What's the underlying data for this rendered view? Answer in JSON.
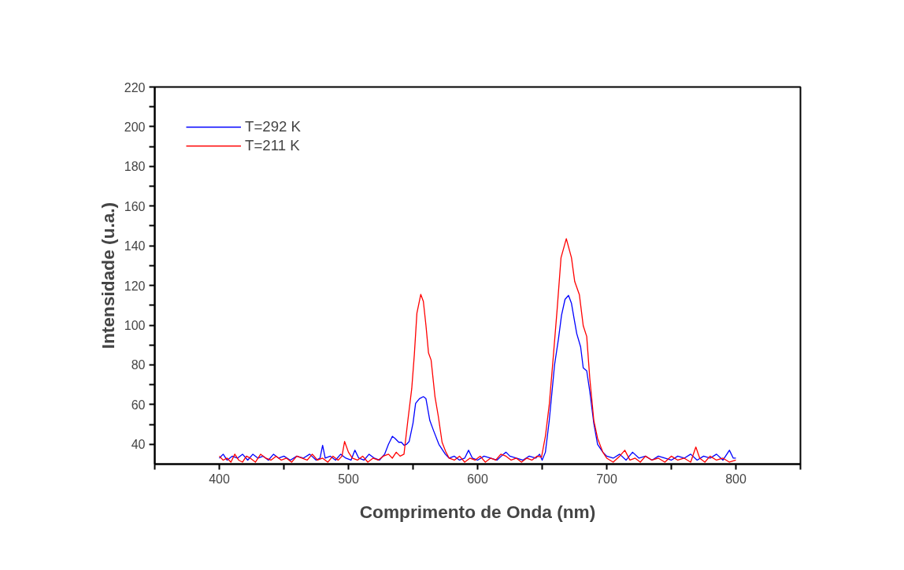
{
  "chart_data": {
    "type": "line",
    "xlabel": "Comprimento de Onda (nm)",
    "ylabel": "Intensidade (u.a.)",
    "xlim": [
      350,
      850
    ],
    "xticks": [
      {
        "value": 350,
        "label": null
      },
      400,
      {
        "value": 450,
        "label": null
      },
      500,
      {
        "value": 550,
        "label": null
      },
      600,
      {
        "value": 650,
        "label": null
      },
      700,
      {
        "value": 750,
        "label": null
      },
      800,
      {
        "value": 850,
        "label": null
      }
    ],
    "ylim": [
      30,
      220
    ],
    "yticks": [
      40,
      {
        "value": 50,
        "label": null
      },
      60,
      {
        "value": 70,
        "label": null
      },
      80,
      {
        "value": 90,
        "label": null
      },
      100,
      {
        "value": 110,
        "label": null
      },
      120,
      {
        "value": 130,
        "label": null
      },
      140,
      {
        "value": 150,
        "label": null
      },
      160,
      {
        "value": 170,
        "label": null
      },
      180,
      {
        "value": 190,
        "label": null
      },
      200,
      {
        "value": 210,
        "label": null
      },
      220
    ],
    "grid": false,
    "legend": "top left",
    "marker": "none",
    "line_style": "solid",
    "series": [
      {
        "name": "T=292 K",
        "color": "#0000ff",
        "x": [
          400,
          403,
          406,
          410,
          414,
          418,
          422,
          426,
          430,
          434,
          438,
          442,
          446,
          450,
          455,
          460,
          465,
          470,
          475,
          478,
          480,
          482,
          486,
          490,
          494,
          498,
          502,
          505,
          508,
          512,
          516,
          520,
          524,
          528,
          531,
          534,
          536,
          539,
          541,
          543,
          545,
          547,
          550,
          552,
          555,
          558,
          560,
          563,
          566,
          570,
          575,
          578,
          582,
          586,
          590,
          593,
          596,
          600,
          605,
          610,
          615,
          620,
          622,
          625,
          630,
          635,
          640,
          645,
          648,
          650,
          652.5,
          655.5,
          659.6,
          662.6,
          665,
          667.7,
          670.4,
          672.7,
          674.8,
          676.8,
          679.8,
          681.8,
          684.5,
          686.9,
          690,
          692.9,
          697,
          700,
          705,
          710,
          715,
          720,
          725,
          730,
          735,
          740,
          745,
          750,
          755,
          760,
          765,
          770,
          775,
          780,
          785,
          790,
          795,
          798,
          800
        ],
        "values": [
          33,
          35,
          32,
          34,
          33,
          35,
          32,
          35,
          33,
          34,
          32,
          35,
          33,
          34,
          32,
          34,
          33,
          35,
          32,
          33,
          39.5,
          33,
          34,
          32,
          35,
          33,
          32,
          37,
          33,
          32,
          35,
          33,
          32,
          35,
          40,
          44,
          43,
          41,
          41,
          39.5,
          40,
          41.4,
          50.7,
          60.6,
          63,
          64,
          63,
          52,
          46.7,
          40,
          35,
          33,
          34,
          32,
          33,
          37,
          33,
          32,
          34,
          33,
          32,
          35,
          36,
          34,
          33,
          32,
          34,
          33,
          35,
          32,
          36,
          52,
          80,
          93,
          105,
          113,
          115,
          111,
          103,
          95.7,
          89,
          78.5,
          77,
          66.5,
          50.5,
          40,
          36,
          34,
          33,
          35,
          32,
          36,
          33,
          34,
          32,
          34,
          33,
          32,
          34,
          33,
          35,
          32,
          34,
          33,
          35,
          32,
          37,
          33,
          33
        ]
      },
      {
        "name": "T=211 K",
        "color": "#ff0000",
        "x": [
          400,
          403,
          406,
          409,
          412,
          415,
          418,
          421,
          424,
          428,
          432,
          436,
          440,
          444,
          448,
          452,
          456,
          460,
          464,
          468,
          472,
          476,
          480,
          484,
          488,
          492,
          495,
          497,
          500,
          503,
          507,
          511,
          515,
          519,
          523,
          527,
          531,
          534,
          537,
          540,
          543,
          546,
          549,
          551,
          553,
          556,
          558,
          560,
          562,
          564,
          567,
          569.6,
          572.5,
          575.5,
          578,
          582,
          586,
          590,
          594,
          598,
          602,
          606,
          610,
          614,
          618,
          622,
          626,
          630,
          634,
          638,
          642,
          646,
          649.5,
          652.5,
          655.5,
          658.6,
          661.6,
          664.6,
          668.7,
          672.7,
          675.2,
          678.8,
          681.8,
          684.5,
          686.9,
          690,
          692.9,
          697,
          700,
          705,
          710,
          714,
          718,
          722,
          726,
          730,
          735,
          740,
          745,
          750,
          755,
          760,
          765,
          769,
          772,
          776,
          780,
          785,
          790,
          795,
          800
        ],
        "values": [
          34,
          32,
          33,
          31,
          35,
          32,
          31,
          34,
          33,
          31,
          35,
          33,
          32,
          34,
          32,
          33,
          31,
          34,
          33,
          32,
          35,
          32,
          33,
          31,
          34,
          32,
          34,
          41.4,
          36,
          33,
          32,
          34,
          31,
          33,
          32,
          34,
          35,
          33,
          36,
          34,
          35,
          52,
          68,
          85,
          106,
          115.5,
          112,
          100,
          86,
          82.4,
          64,
          54,
          41,
          36,
          33,
          32,
          34,
          31,
          33,
          32,
          34,
          31,
          33,
          32,
          35,
          34,
          32,
          33,
          31,
          33,
          32,
          34,
          33.5,
          44,
          60,
          84,
          108,
          134,
          143.6,
          134,
          122,
          115.4,
          99.7,
          94.3,
          73,
          52,
          43,
          36,
          33,
          31,
          34,
          37,
          32,
          33,
          31,
          34,
          32,
          33,
          31,
          34,
          32,
          33,
          31,
          38.6,
          33,
          31,
          34,
          32,
          33,
          31,
          32
        ]
      }
    ]
  }
}
